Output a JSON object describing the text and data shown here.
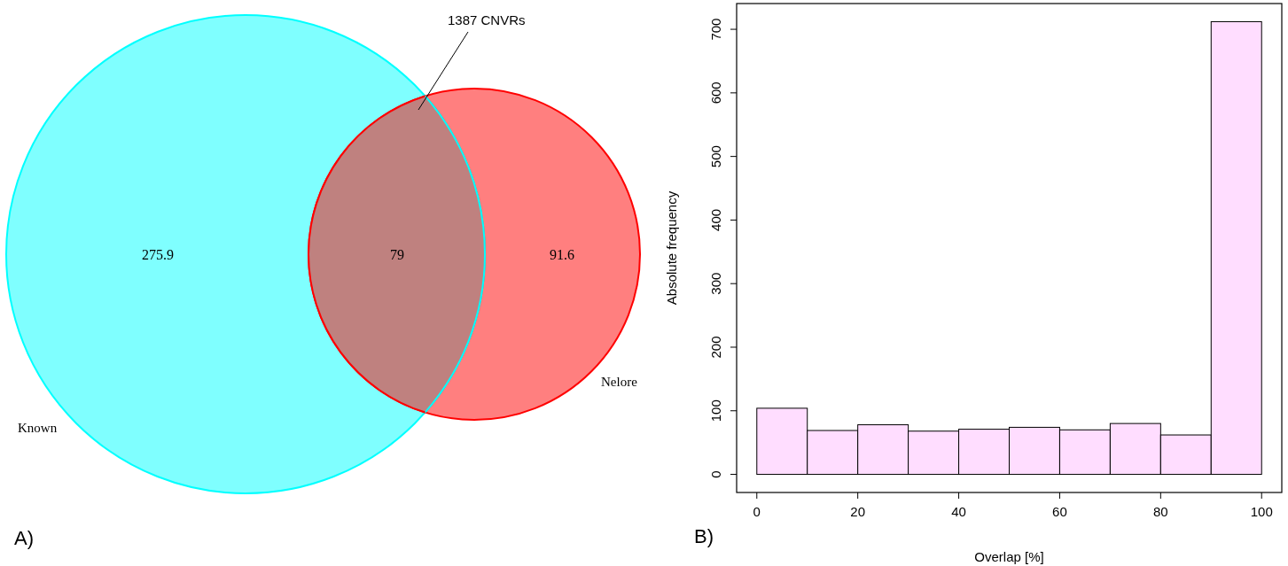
{
  "chart_data": [
    {
      "type": "other",
      "categories": [
        "Known",
        null,
        "Nelore"
      ],
      "values": [
        275.9,
        79,
        91.6
      ],
      "colors": [
        "#00ffff",
        "#bf817f",
        "#ff0000"
      ],
      "data_labels": true,
      "annotations": [
        "1387 CNVRs",
        "A)"
      ]
    },
    {
      "type": "histogram",
      "bins": [
        0,
        10,
        20,
        30,
        40,
        50,
        60,
        70,
        80,
        90,
        100
      ],
      "values": [
        104,
        69,
        78,
        68,
        71,
        74,
        70,
        80,
        62,
        712
      ],
      "color": "#ffddff",
      "xlim": [
        -4,
        104
      ],
      "ylim": [
        -28.5,
        740.5
      ],
      "xticks": [
        0,
        20,
        40,
        60,
        80,
        100
      ],
      "yticks": [
        0,
        100,
        200,
        300,
        400,
        500,
        600,
        700
      ],
      "xlabel": "Overlap [%]",
      "ylabel": "Absolute frequency",
      "annotations": [
        "B)"
      ],
      "grid": false
    }
  ]
}
